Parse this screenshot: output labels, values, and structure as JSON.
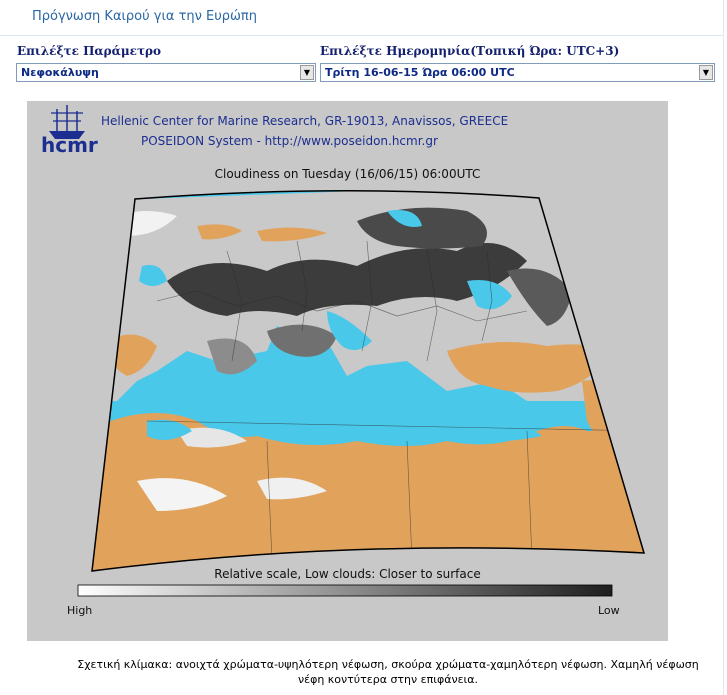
{
  "page": {
    "title": "Πρόγνωση Καιρού για την Ευρώπη"
  },
  "parameter": {
    "label": "Επιλέξτε Παράμετρο",
    "selected": "Νεφοκάλυψη"
  },
  "date": {
    "label": "Επιλέξτε Ημερομηνία(Τοπική Ώρα: UTC+3)",
    "selected": "Τρίτη 16-06-15 Ώρα 06:00 UTC"
  },
  "map": {
    "logo_text": "hcmr",
    "header_line1": "Hellenic Center for Marine Research, GR-19013, Anavissos, GREECE",
    "header_line2": "POSEIDON System - http://www.poseidon.hcmr.gr",
    "title": "Cloudiness on Tuesday (16/06/15) 06:00UTC",
    "scale_caption": "Relative scale, Low clouds: Closer to surface",
    "scale_high": "High",
    "scale_low": "Low"
  },
  "footnote": {
    "line1": "Σχετική κλίμακα: ανοιχτά χρώματα-υψηλότερη νέφωση, σκούρα χρώματα-χαμηλότερη νέφωση. Χαμηλή νέφωση",
    "line2": "νέφη κοντύτερα στην επιφάνεια."
  },
  "colors": {
    "sea": "#49c8ea",
    "land": "#e1a25c",
    "clouds_dark": "#2a2a2a",
    "clouds_light": "#ffffff",
    "frame": "#c8c8c8",
    "title_blue": "#2a67a4"
  },
  "icons": {
    "logo": "ship-logo-icon",
    "dropdown": "chevron-down-icon"
  }
}
